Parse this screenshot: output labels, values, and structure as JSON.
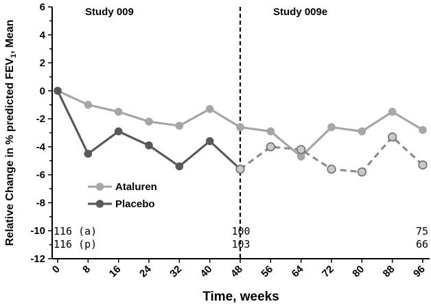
{
  "chart_data": {
    "type": "line",
    "xlabel": "Time, weeks",
    "ylabel_main": "Relative Change in % predicted FEV",
    "ylabel_sub": "1",
    "ylabel_tail": ", Mean",
    "x_ticks": [
      0,
      8,
      16,
      24,
      32,
      40,
      48,
      56,
      64,
      72,
      80,
      88,
      96
    ],
    "y_ticks": [
      6,
      4,
      2,
      0,
      -2,
      -4,
      -6,
      -8,
      -10,
      -12
    ],
    "xlim": [
      0,
      96
    ],
    "ylim": [
      -12,
      6
    ],
    "divider_x": 48,
    "panel_labels": {
      "left": "Study 009",
      "right": "Study 009e"
    },
    "series": [
      {
        "name": "Ataluren",
        "color": "#a6a6a6",
        "line_style": "solid",
        "x": [
          0,
          8,
          16,
          24,
          32,
          40,
          48,
          56,
          64,
          72,
          80,
          88,
          96
        ],
        "values": [
          0.0,
          -1.0,
          -1.5,
          -2.2,
          -2.5,
          -1.3,
          -2.6,
          -2.9,
          -4.7,
          -2.6,
          -2.9,
          -1.5,
          -2.8
        ]
      },
      {
        "name": "Placebo",
        "color": "#595959",
        "line_style": "solid",
        "x": [
          0,
          8,
          16,
          24,
          32,
          40,
          48
        ],
        "values": [
          0.0,
          -4.5,
          -2.9,
          -3.9,
          -5.4,
          -3.6,
          -5.6
        ]
      },
      {
        "name": "Placebo (Study 009e)",
        "color": "#8c8c8c",
        "fill": "#c9c9c9",
        "line_style": "dashed",
        "x": [
          48,
          56,
          64,
          72,
          80,
          88,
          96
        ],
        "values": [
          -5.6,
          -4.0,
          -4.2,
          -5.6,
          -5.8,
          -3.3,
          -5.3
        ]
      }
    ],
    "legend": [
      {
        "label": "Ataluren",
        "color": "#a6a6a6"
      },
      {
        "label": "Placebo",
        "color": "#595959"
      }
    ],
    "counts": {
      "ataluren": [
        {
          "x": 0,
          "text": "116 (a)"
        },
        {
          "x": 48,
          "text": "100"
        },
        {
          "x": 96,
          "text": "75"
        }
      ],
      "placebo": [
        {
          "x": 0,
          "text": "116 (p)"
        },
        {
          "x": 48,
          "text": "103"
        },
        {
          "x": 96,
          "text": "66"
        }
      ]
    }
  }
}
